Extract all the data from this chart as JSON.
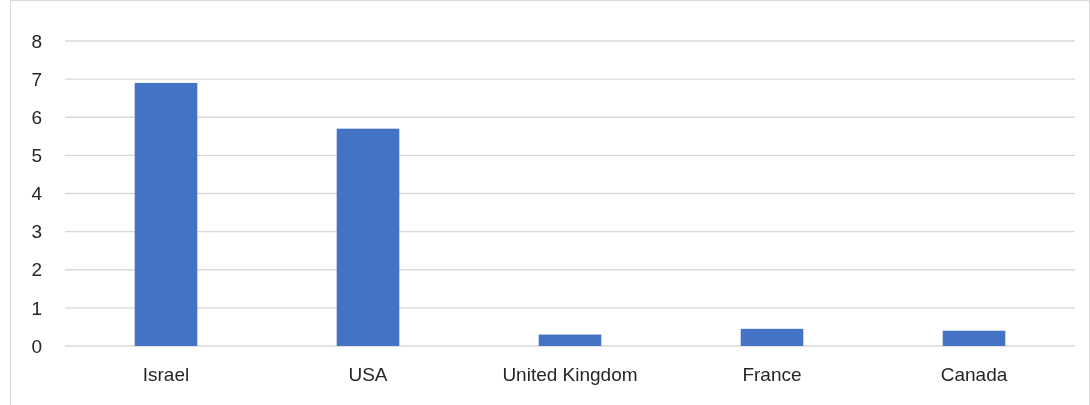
{
  "chart_data": {
    "type": "bar",
    "categories": [
      "Israel",
      "USA",
      "United Kingdom",
      "France",
      "Canada"
    ],
    "values": [
      6.9,
      5.7,
      0.3,
      0.45,
      0.4
    ],
    "color": "#4472c4",
    "ylim": [
      0,
      8
    ],
    "yticks": [
      0,
      1,
      2,
      3,
      4,
      5,
      6,
      7,
      8
    ],
    "grid": "y"
  }
}
